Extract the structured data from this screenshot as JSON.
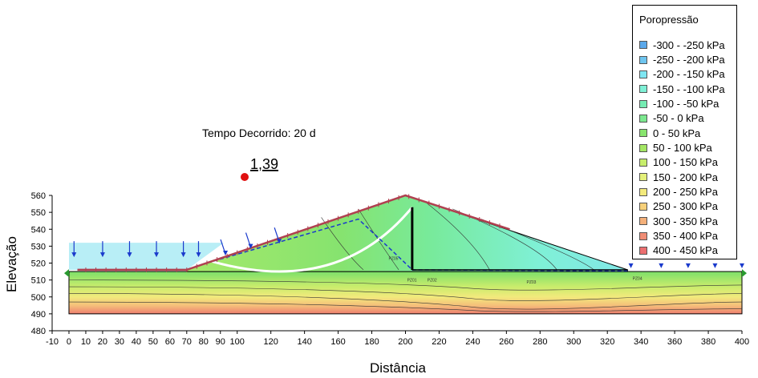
{
  "chart_data": {
    "type": "contour",
    "xlabel": "Distância",
    "ylabel": "Elevação",
    "xlim": [
      -10,
      400
    ],
    "ylim": [
      480,
      560
    ],
    "x_ticks": [
      -10,
      0,
      10,
      20,
      30,
      40,
      50,
      60,
      70,
      80,
      90,
      100,
      120,
      140,
      160,
      180,
      200,
      220,
      240,
      260,
      280,
      300,
      320,
      340,
      360,
      380,
      400
    ],
    "y_ticks": [
      480,
      490,
      500,
      510,
      520,
      530,
      540,
      550,
      560
    ],
    "annotation": "Tempo Decorrido: 20 d",
    "factor_of_safety": "1,39",
    "legend": {
      "title": "Poropressão",
      "placement": "right",
      "items": [
        {
          "label": "-300 - -250 kPa",
          "color": "#5aa8ea"
        },
        {
          "label": "-250 - -200 kPa",
          "color": "#6ec5ef"
        },
        {
          "label": "-200 - -150 kPa",
          "color": "#7fe6f2"
        },
        {
          "label": "-150 - -100 kPa",
          "color": "#7ff0d6"
        },
        {
          "label": "-100 - -50 kPa",
          "color": "#75ebb2"
        },
        {
          "label": "-50 - 0 kPa",
          "color": "#7ce88f"
        },
        {
          "label": "0 - 50 kPa",
          "color": "#88e46e"
        },
        {
          "label": "50 - 100 kPa",
          "color": "#a4e664"
        },
        {
          "label": "100 - 150 kPa",
          "color": "#c7ee6c"
        },
        {
          "label": "150 - 200 kPa",
          "color": "#e4f07a"
        },
        {
          "label": "200 - 250 kPa",
          "color": "#f3ea7c"
        },
        {
          "label": "250 - 300 kPa",
          "color": "#f6d07a"
        },
        {
          "label": "300 - 350 kPa",
          "color": "#f4b07a"
        },
        {
          "label": "350 - 400 kPa",
          "color": "#f08d75"
        },
        {
          "label": "400 - 450 kPa",
          "color": "#eb6f70"
        }
      ]
    },
    "geometry": {
      "foundation_top": 515,
      "foundation_bottom": 490,
      "foundation_x": [
        0,
        400
      ],
      "dam_crest": [
        200,
        560
      ],
      "upstream_toe": [
        70,
        516
      ],
      "downstream_toe": [
        332,
        516
      ],
      "reservoir_level": 532,
      "core_x": 204,
      "core_top": 553
    },
    "piezometers": [
      {
        "label": "PZ05",
        "x": 190,
        "y": 522
      },
      {
        "label": "PZ01",
        "x": 201,
        "y": 509
      },
      {
        "label": "PZ02",
        "x": 213,
        "y": 509
      },
      {
        "label": "PZ03",
        "x": 272,
        "y": 508
      },
      {
        "label": "PZ04",
        "x": 335,
        "y": 510
      }
    ]
  }
}
